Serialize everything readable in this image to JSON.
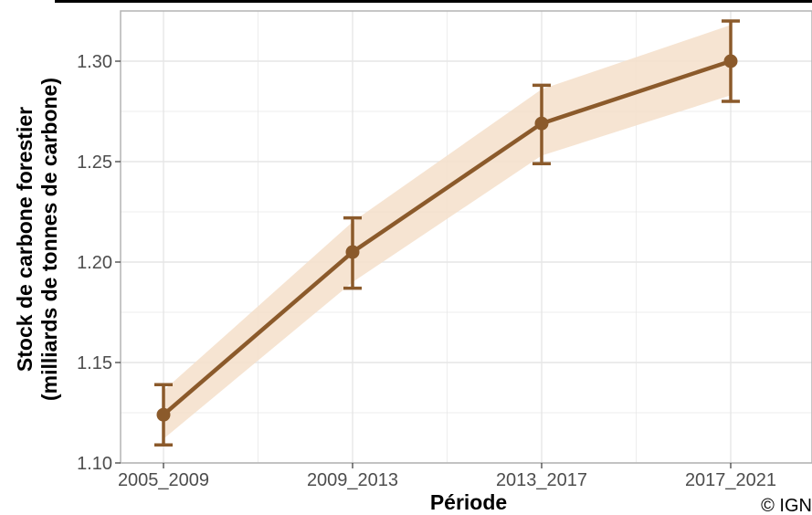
{
  "chart_data": {
    "type": "line",
    "title": "",
    "xlabel": "Période",
    "ylabel_line1": "Stock de carbone forestier",
    "ylabel_line2": "(milliards de tonnes de carbone)",
    "categories": [
      "2005_2009",
      "2009_2013",
      "2013_2017",
      "2017_2021"
    ],
    "series": [
      {
        "values": [
          1.124,
          1.205,
          1.269,
          1.3
        ],
        "error_low": [
          1.109,
          1.187,
          1.249,
          1.28
        ],
        "error_high": [
          1.139,
          1.222,
          1.288,
          1.32
        ],
        "band_low": [
          1.112,
          1.19,
          1.253,
          1.283
        ],
        "band_high": [
          1.136,
          1.22,
          1.286,
          1.318
        ]
      }
    ],
    "ylim": [
      1.1,
      1.325
    ],
    "yticks": [
      1.1,
      1.15,
      1.2,
      1.25,
      1.3
    ],
    "ytick_labels": [
      "1.10",
      "1.15",
      "1.20",
      "1.25",
      "1.30"
    ],
    "grid": true,
    "legend": "none",
    "colors": {
      "line": "#8b5a2b",
      "band": "#f5dfca",
      "grid": "#e6e6e6",
      "panel_border": "#b3b3b3"
    }
  },
  "credit": "© IGN"
}
